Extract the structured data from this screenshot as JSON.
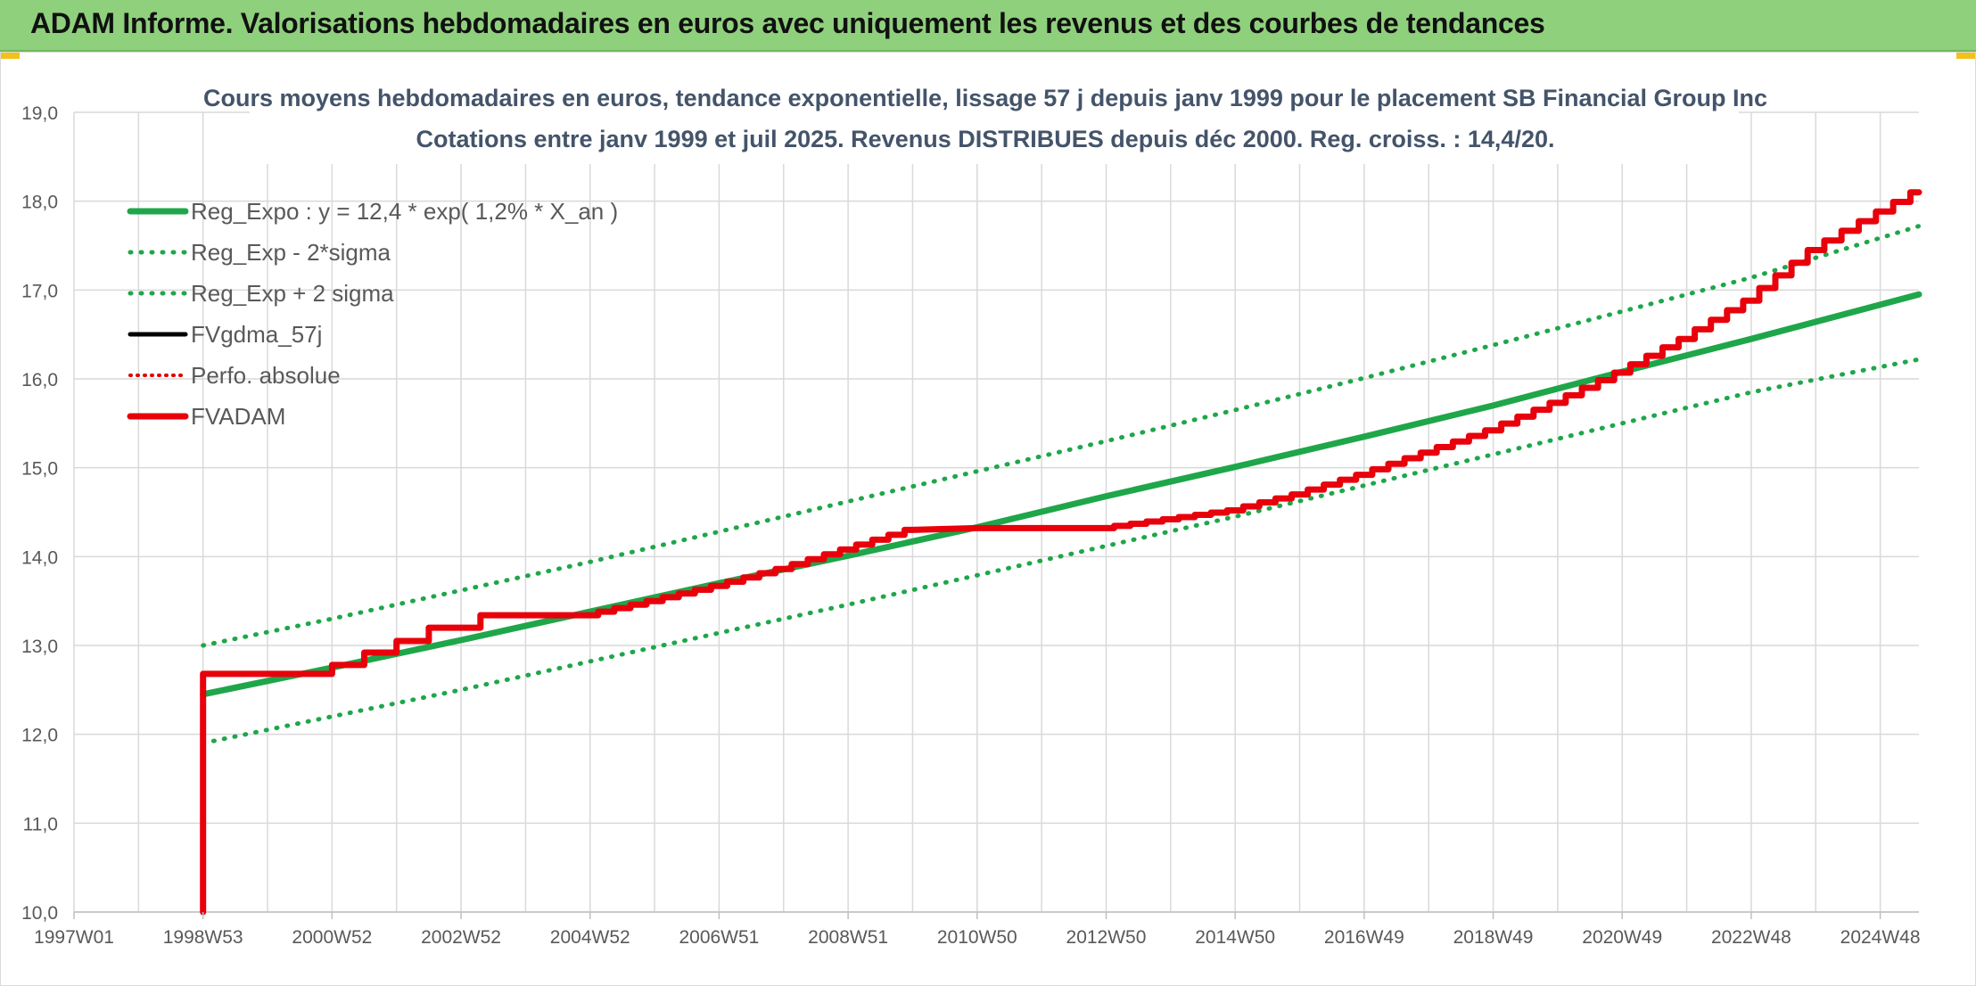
{
  "banner": {
    "title": "ADAM Informe. Valorisations hebdomadaires en euros avec uniquement les revenus et des courbes de tendances"
  },
  "colors": {
    "banner_bg": "#8fd07c",
    "reg_expo": "#1fa64a",
    "sigma": "#1fa64a",
    "fvgdma": "#000000",
    "perfo": "#e00000",
    "fvadam": "#e8000b",
    "grid": "#d9d9d9"
  },
  "chart_data": {
    "type": "line",
    "title": "Cours moyens hebdomadaires en euros, tendance exponentielle, lissage 57 j depuis janv 1999 pour le placement SB Financial Group Inc",
    "subtitle": "Cotations entre janv 1999 et juil 2025. Revenus DISTRIBUES depuis déc 2000. Reg. croiss. : 14,4/20.",
    "ylim": [
      10,
      19
    ],
    "yticks": [
      "10,0",
      "11,0",
      "12,0",
      "13,0",
      "14,0",
      "15,0",
      "16,0",
      "17,0",
      "18,0",
      "19,0"
    ],
    "xlim": [
      1997.0,
      2025.6
    ],
    "xticks": [
      {
        "label": "1997W01",
        "x": 1997.0
      },
      {
        "label": "1998W53",
        "x": 1999.0
      },
      {
        "label": "2000W52",
        "x": 2001.0
      },
      {
        "label": "2002W52",
        "x": 2003.0
      },
      {
        "label": "2004W52",
        "x": 2005.0
      },
      {
        "label": "2006W51",
        "x": 2007.0
      },
      {
        "label": "2008W51",
        "x": 2009.0
      },
      {
        "label": "2010W50",
        "x": 2011.0
      },
      {
        "label": "2012W50",
        "x": 2013.0
      },
      {
        "label": "2014W50",
        "x": 2015.0
      },
      {
        "label": "2016W49",
        "x": 2017.0
      },
      {
        "label": "2018W49",
        "x": 2019.0
      },
      {
        "label": "2020W49",
        "x": 2021.0
      },
      {
        "label": "2022W48",
        "x": 2023.0
      },
      {
        "label": "2024W48",
        "x": 2025.0
      }
    ],
    "grid": true,
    "legend_position": "top-left",
    "series": [
      {
        "name": "Reg_Expo : y = 12,4 * exp( 1,2% *  X_an )",
        "style": "solid",
        "x": [
          1999.0,
          2001.0,
          2003.0,
          2005.0,
          2007.0,
          2009.0,
          2011.0,
          2013.0,
          2015.0,
          2017.0,
          2019.0,
          2021.0,
          2023.0,
          2025.6
        ],
        "y": [
          12.45,
          12.75,
          13.06,
          13.38,
          13.7,
          14.01,
          14.33,
          14.68,
          15.01,
          15.35,
          15.7,
          16.08,
          16.45,
          16.95
        ]
      },
      {
        "name": "Reg_Exp - 2*sigma",
        "style": "dotted",
        "x": [
          1999.0,
          2001.0,
          2003.0,
          2005.0,
          2007.0,
          2009.0,
          2011.0,
          2013.0,
          2015.0,
          2017.0,
          2019.0,
          2021.0,
          2023.0,
          2025.6
        ],
        "y": [
          11.9,
          12.2,
          12.5,
          12.82,
          13.14,
          13.46,
          13.79,
          14.12,
          14.45,
          14.8,
          15.15,
          15.5,
          15.85,
          16.22
        ]
      },
      {
        "name": "Reg_Exp + 2 sigma",
        "style": "dotted",
        "x": [
          1999.0,
          2001.0,
          2003.0,
          2005.0,
          2007.0,
          2009.0,
          2011.0,
          2013.0,
          2015.0,
          2017.0,
          2019.0,
          2021.0,
          2023.0,
          2025.6
        ],
        "y": [
          13.0,
          13.3,
          13.62,
          13.94,
          14.28,
          14.62,
          14.96,
          15.3,
          15.65,
          16.01,
          16.38,
          16.76,
          17.14,
          17.72
        ]
      },
      {
        "name": "FVgdma_57j",
        "style": "solid",
        "x": [],
        "y": []
      },
      {
        "name": "Perfo. absolue",
        "style": "dotted",
        "x": [],
        "y": []
      },
      {
        "name": "FVADAM",
        "style": "step",
        "x": [
          1999.0,
          1999.0,
          2001.0,
          2001.0,
          2001.5,
          2001.5,
          2002.0,
          2002.0,
          2002.5,
          2002.5,
          2003.3,
          2003.3,
          2005.0,
          2006.0,
          2007.0,
          2008.0,
          2009.0,
          2010.0,
          2011.0,
          2013.0,
          2014.0,
          2015.0,
          2016.0,
          2017.0,
          2018.0,
          2019.0,
          2020.0,
          2021.0,
          2022.0,
          2023.0,
          2024.0,
          2025.6
        ],
        "y": [
          10.0,
          12.68,
          12.68,
          12.78,
          12.78,
          12.92,
          12.92,
          13.05,
          13.05,
          13.2,
          13.2,
          13.34,
          13.34,
          13.5,
          13.67,
          13.86,
          14.08,
          14.3,
          14.32,
          14.32,
          14.42,
          14.52,
          14.7,
          14.92,
          15.17,
          15.42,
          15.73,
          16.07,
          16.45,
          16.88,
          17.45,
          18.1
        ]
      }
    ]
  }
}
